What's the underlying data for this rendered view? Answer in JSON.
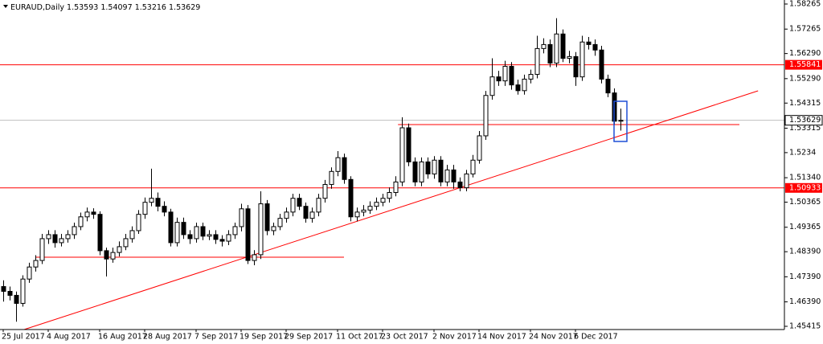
{
  "chart_data": {
    "type": "candlestick",
    "title": "EURAUD,Daily",
    "categories": [
      "25 Jul 2017",
      null,
      null,
      null,
      null,
      null,
      null,
      "4 Aug 2017",
      null,
      null,
      null,
      null,
      null,
      null,
      null,
      "16 Aug 2017",
      null,
      null,
      null,
      null,
      null,
      null,
      "28 Aug 2017",
      null,
      null,
      null,
      null,
      null,
      null,
      null,
      "7 Sep 2017",
      null,
      null,
      null,
      null,
      null,
      null,
      "19 Sep 2017",
      null,
      null,
      null,
      null,
      null,
      null,
      "29 Sep 2017",
      null,
      null,
      null,
      null,
      null,
      null,
      null,
      "11 Oct 2017",
      null,
      null,
      null,
      null,
      null,
      null,
      "23 Oct 2017",
      null,
      null,
      null,
      null,
      null,
      null,
      null,
      "2 Nov 2017",
      null,
      null,
      null,
      null,
      null,
      null,
      "14 Nov 2017",
      null,
      null,
      null,
      null,
      null,
      null,
      null,
      "24 Nov 2017",
      null,
      null,
      null,
      null,
      null,
      null,
      "6 Dec 2017",
      null,
      null,
      null,
      null,
      null,
      null,
      null
    ],
    "open": [
      1.47,
      1.4681,
      1.4665,
      1.4633,
      1.473,
      1.4778,
      1.4804,
      1.4891,
      1.4907,
      1.4875,
      1.4891,
      1.4907,
      1.4939,
      1.4978,
      1.4997,
      1.4988,
      1.4843,
      1.481,
      1.4836,
      1.4859,
      1.4891,
      1.4923,
      1.4988,
      1.5036,
      1.5052,
      1.502,
      1.4997,
      1.4875,
      1.4956,
      1.4907,
      1.4891,
      1.4939,
      1.4901,
      1.4907,
      1.4888,
      1.4881,
      1.4907,
      1.4939,
      1.501,
      1.4804,
      1.4827,
      1.503,
      1.4923,
      1.4939,
      1.4972,
      1.4997,
      1.5052,
      1.502,
      1.4972,
      1.4997,
      1.5052,
      1.5107,
      1.5159,
      1.5214,
      1.5127,
      1.4978,
      1.4997,
      1.5005,
      1.502,
      1.5036,
      1.5052,
      1.5075,
      1.5117,
      1.5333,
      1.5197,
      1.5117,
      1.5197,
      1.5149,
      1.5204,
      1.5117,
      1.5165,
      1.5117,
      1.5094,
      1.5149,
      1.5204,
      1.5301,
      1.5462,
      1.5536,
      1.552,
      1.5578,
      1.5504,
      1.5481,
      1.5527,
      1.5546,
      1.5649,
      1.5665,
      1.5591,
      1.5707,
      1.561,
      1.5617,
      1.5536,
      1.5675,
      1.5665,
      1.5643,
      1.5527,
      1.5472,
      1.53593
    ],
    "high": [
      1.4725,
      1.47,
      1.468,
      1.4745,
      1.4795,
      1.4825,
      1.491,
      1.4925,
      1.4925,
      1.491,
      1.4925,
      1.4955,
      1.4995,
      1.5015,
      1.5012,
      1.5,
      1.4855,
      1.4855,
      1.488,
      1.491,
      1.494,
      1.5005,
      1.5055,
      1.517,
      1.5075,
      1.504,
      1.501,
      1.4975,
      1.4975,
      1.4925,
      1.4955,
      1.4955,
      1.4925,
      1.4925,
      1.4905,
      1.4925,
      1.4955,
      1.503,
      1.5025,
      1.4845,
      1.508,
      1.5045,
      1.4955,
      1.499,
      1.5015,
      1.507,
      1.507,
      1.5035,
      1.5015,
      1.507,
      1.5125,
      1.5175,
      1.524,
      1.523,
      1.514,
      1.5015,
      1.5025,
      1.504,
      1.5055,
      1.507,
      1.5095,
      1.514,
      1.5375,
      1.535,
      1.5215,
      1.5215,
      1.5215,
      1.522,
      1.522,
      1.5185,
      1.5185,
      1.5135,
      1.5165,
      1.5225,
      1.532,
      1.548,
      1.561,
      1.556,
      1.56,
      1.5595,
      1.5525,
      1.5545,
      1.5565,
      1.57,
      1.569,
      1.5685,
      1.577,
      1.5725,
      1.564,
      1.5635,
      1.57,
      1.5695,
      1.5685,
      1.566,
      1.5545,
      1.549,
      1.54097
    ],
    "low": [
      1.464,
      1.4645,
      1.456,
      1.462,
      1.4715,
      1.476,
      1.479,
      1.487,
      1.4855,
      1.486,
      1.4875,
      1.489,
      1.4925,
      1.496,
      1.497,
      1.4825,
      1.474,
      1.4795,
      1.482,
      1.4845,
      1.4875,
      1.491,
      1.497,
      1.502,
      1.5,
      1.498,
      1.486,
      1.486,
      1.489,
      1.487,
      1.4875,
      1.4885,
      1.4885,
      1.487,
      1.486,
      1.4865,
      1.489,
      1.492,
      1.479,
      1.4785,
      1.481,
      1.4905,
      1.4905,
      1.4925,
      1.4955,
      1.498,
      1.5005,
      1.4955,
      1.4955,
      1.498,
      1.5035,
      1.509,
      1.514,
      1.511,
      1.496,
      1.496,
      1.498,
      1.499,
      1.5005,
      1.502,
      1.5035,
      1.506,
      1.51,
      1.518,
      1.51,
      1.51,
      1.513,
      1.513,
      1.51,
      1.51,
      1.509,
      1.508,
      1.508,
      1.5135,
      1.519,
      1.5285,
      1.5445,
      1.55,
      1.55,
      1.5485,
      1.5465,
      1.5465,
      1.551,
      1.553,
      1.563,
      1.5575,
      1.5575,
      1.5595,
      1.559,
      1.55,
      1.552,
      1.5645,
      1.562,
      1.551,
      1.5455,
      1.5345,
      1.53216
    ],
    "close": [
      1.4681,
      1.4665,
      1.4633,
      1.473,
      1.4778,
      1.4804,
      1.4891,
      1.4907,
      1.4875,
      1.4891,
      1.4907,
      1.4939,
      1.4978,
      1.4997,
      1.4988,
      1.4843,
      1.481,
      1.4836,
      1.4859,
      1.4891,
      1.4923,
      1.4988,
      1.5036,
      1.5052,
      1.502,
      1.4997,
      1.4875,
      1.4956,
      1.4907,
      1.4891,
      1.4939,
      1.4901,
      1.4907,
      1.4888,
      1.4881,
      1.4907,
      1.4939,
      1.501,
      1.4804,
      1.4827,
      1.503,
      1.4923,
      1.4939,
      1.4972,
      1.4997,
      1.5052,
      1.502,
      1.4972,
      1.4997,
      1.5052,
      1.5107,
      1.5159,
      1.5214,
      1.5127,
      1.4978,
      1.4997,
      1.5005,
      1.502,
      1.5036,
      1.5052,
      1.5075,
      1.5117,
      1.5333,
      1.5197,
      1.5117,
      1.5197,
      1.5149,
      1.5204,
      1.5117,
      1.5165,
      1.5117,
      1.5094,
      1.5149,
      1.5204,
      1.5301,
      1.5462,
      1.5536,
      1.552,
      1.5578,
      1.5504,
      1.5481,
      1.5527,
      1.5546,
      1.5649,
      1.5665,
      1.5591,
      1.5707,
      1.561,
      1.5617,
      1.5536,
      1.5675,
      1.5665,
      1.5643,
      1.5527,
      1.5472,
      1.53593,
      1.53629
    ],
    "ylim": [
      1.45287,
      1.58425
    ],
    "yticks": [
      1.58265,
      1.57265,
      {
        "value": 1.5629,
        "label": "1.56290"
      },
      {
        "value": 1.5529,
        "label": "1.55290"
      },
      1.54315,
      1.53315,
      1.5234,
      {
        "value": 1.5134,
        "label": "1.51340"
      },
      1.50365,
      1.49365,
      {
        "value": 1.4839,
        "label": "1.48390"
      },
      {
        "value": 1.4739,
        "label": "1.47390"
      },
      {
        "value": 1.4639,
        "label": "1.46390"
      },
      1.45415
    ],
    "levels": [
      {
        "value": 1.55841,
        "color": "#ff0000"
      },
      {
        "value": 1.50933,
        "color": "#ff0000"
      }
    ],
    "price_line_color": "#c0c0c0",
    "trendlines": [
      {
        "x": [
          3.25,
          117.4
        ],
        "y": [
          1.45287,
          1.54804
        ],
        "color": "#ff0000"
      },
      {
        "x": [
          5.1,
          53
        ],
        "y": [
          1.4817,
          1.4817
        ],
        "color": "#ff0000"
      },
      {
        "x": [
          61.4,
          114.5
        ],
        "y": [
          1.5346,
          1.5346
        ],
        "color": "#ff0000"
      }
    ]
  }
}
